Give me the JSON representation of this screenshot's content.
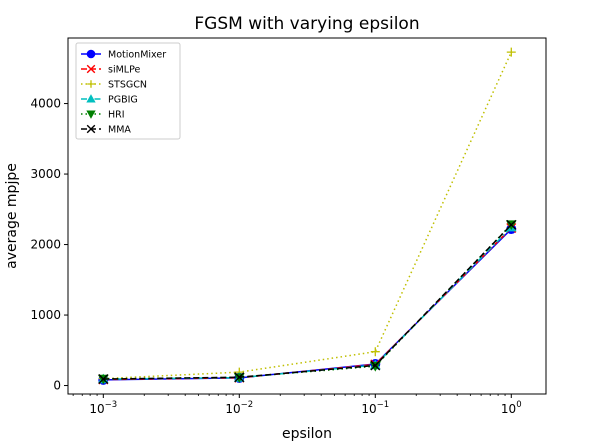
{
  "chart_data": {
    "type": "line",
    "title": "FGSM with varying epsilon",
    "xlabel": "epsilon",
    "ylabel": "average mpjpe",
    "x_scale": "log",
    "x": [
      0.001,
      0.01,
      0.1,
      1
    ],
    "x_tick_labels": [
      {
        "base": "10",
        "exp": "−3",
        "value": 0.001
      },
      {
        "base": "10",
        "exp": "−2",
        "value": 0.01
      },
      {
        "base": "10",
        "exp": "−1",
        "value": 0.1
      },
      {
        "base": "10",
        "exp": "0",
        "value": 1
      }
    ],
    "xlim": [
      0.00055,
      1.8
    ],
    "ylim": [
      -120,
      4930
    ],
    "y_ticks": [
      0,
      1000,
      2000,
      3000,
      4000
    ],
    "y_tick_labels": [
      "0",
      "1000",
      "2000",
      "3000",
      "4000"
    ],
    "grid": false,
    "legend_position": "top-left",
    "series": [
      {
        "name": "MotionMixer",
        "values": [
          80,
          108,
          305,
          2220
        ],
        "color": "#0000ff",
        "dash": "solid",
        "marker": "circle"
      },
      {
        "name": "siMLPe",
        "values": [
          85,
          110,
          300,
          2235
        ],
        "color": "#ff0000",
        "dash": "dashed",
        "marker": "x"
      },
      {
        "name": "STSGCN",
        "values": [
          98,
          190,
          480,
          4730
        ],
        "color": "#bfbf00",
        "dash": "dotted",
        "marker": "plus"
      },
      {
        "name": "PGBIG",
        "values": [
          90,
          112,
          290,
          2245
        ],
        "color": "#00bfbf",
        "dash": "dashdot",
        "marker": "triangle-up"
      },
      {
        "name": "HRI",
        "values": [
          95,
          115,
          275,
          2285
        ],
        "color": "#008000",
        "dash": "dotted",
        "marker": "triangle-down"
      },
      {
        "name": "MMA",
        "values": [
          92,
          118,
          285,
          2280
        ],
        "color": "#000000",
        "dash": "dashed",
        "marker": "x"
      }
    ]
  }
}
